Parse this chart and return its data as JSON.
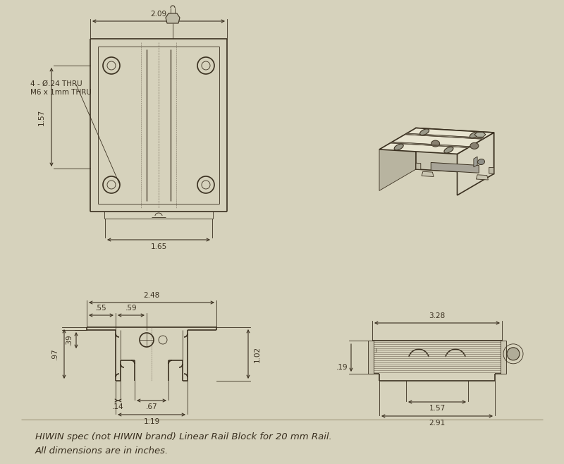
{
  "bg_color": "#d6d2bc",
  "line_color": "#3a3020",
  "dim_color": "#3a3020",
  "title": "HIWIN spec (not HIWIN brand) Linear Rail Block for 20 mm Rail.",
  "subtitle": "All dimensions are in inches.",
  "title_fontsize": 9.5,
  "subtitle_fontsize": 9.5,
  "annotation_label": "4 - Ø.24 THRU\nM6 x 1mm THRU",
  "dim_top_width": "2.09",
  "dim_top_bottom": "1.65",
  "dim_left_height": "1.57",
  "dim_front_width": "2.48",
  "dim_front_left": ".55",
  "dim_front_inner": ".59",
  "dim_front_height_total": "1.02",
  "dim_front_height_inner": ".97",
  "dim_front_height_base": ".39",
  "dim_front_bottom_inner": ".67",
  "dim_front_bottom_left": ".14",
  "dim_front_bottom_total": "1.19",
  "dim_side_width_total": "3.28",
  "dim_side_width_mid": "1.57",
  "dim_side_width_bottom": "2.91",
  "dim_side_height": ".19",
  "face_top_color": "#e8e4d0",
  "face_front_color": "#c8c4b0",
  "face_right_color": "#d8d4c0",
  "face_bottom_color": "#b0ac98"
}
